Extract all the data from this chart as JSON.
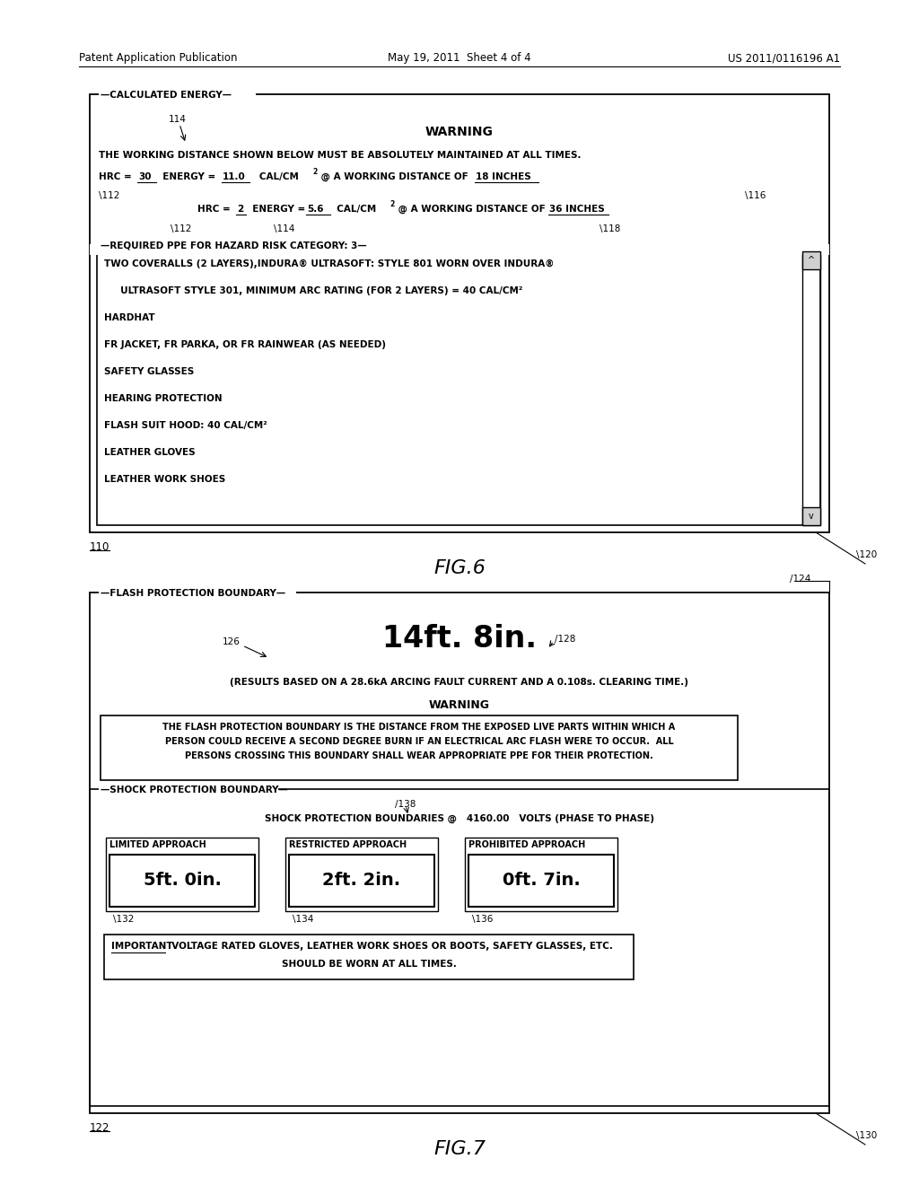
{
  "bg_color": "#ffffff",
  "header_left": "Patent Application Publication",
  "header_center": "May 19, 2011  Sheet 4 of 4",
  "header_right": "US 2011/0116196 A1",
  "fig6_label": "FIG.6",
  "fig7_label": "FIG.7",
  "fig6_num_left": "110",
  "fig6_num_right": "120",
  "fig7_num_left": "122",
  "fig7_num_right": "130",
  "fig6": {
    "title_label": "CALCULATED ENERGY",
    "warning_title": "WARNING",
    "line1": "THE WORKING DISTANCE SHOWN BELOW MUST BE ABSOLUTELY MAINTAINED AT ALL TIMES.",
    "ppe_label": "REQUIRED PPE FOR HAZARD RISK CATEGORY: 3",
    "ppe_lines": [
      "TWO COVERALLS (2 LAYERS),INDURA® ULTRASOFT: STYLE 801 WORN OVER INDURA®",
      "     ULTRASOFT STYLE 301, MINIMUM ARC RATING (FOR 2 LAYERS) = 40 CAL/CM²",
      "HARDHAT",
      "FR JACKET, FR PARKA, OR FR RAINWEAR (AS NEEDED)",
      "SAFETY GLASSES",
      "HEARING PROTECTION",
      "FLASH SUIT HOOD: 40 CAL/CM²",
      "LEATHER GLOVES",
      "LEATHER WORK SHOES"
    ]
  },
  "fig7": {
    "title_label": "FLASH PROTECTION BOUNDARY",
    "main_value": "14ft. 8in.",
    "results_line": "(RESULTS BASED ON A 28.6kA ARCING FAULT CURRENT AND A 0.108s. CLEARING TIME.)",
    "warning_title": "WARNING",
    "warning_text1": "THE FLASH PROTECTION BOUNDARY IS THE DISTANCE FROM THE EXPOSED LIVE PARTS WITHIN WHICH A",
    "warning_text2": "PERSON COULD RECEIVE A SECOND DEGREE BURN IF AN ELECTRICAL ARC FLASH WERE TO OCCUR.  ALL",
    "warning_text3": "PERSONS CROSSING THIS BOUNDARY SHALL WEAR APPROPRIATE PPE FOR THEIR PROTECTION.",
    "shock_label": "SHOCK PROTECTION BOUNDARY",
    "shock_line": "SHOCK PROTECTION BOUNDARIES @   4160.00   VOLTS (PHASE TO PHASE)",
    "limited_label": "LIMITED APPROACH",
    "limited_value": "5ft. 0in.",
    "restricted_label": "RESTRICTED APPROACH",
    "restricted_value": "2ft. 2in.",
    "prohibited_label": "PROHIBITED APPROACH",
    "prohibited_value": "0ft. 7in.",
    "important_text1_a": "IMPORTANT",
    "important_text1_b": "  VOLTAGE RATED GLOVES, LEATHER WORK SHOES OR BOOTS, SAFETY GLASSES, ETC.",
    "important_text2": "SHOULD BE WORN AT ALL TIMES."
  }
}
